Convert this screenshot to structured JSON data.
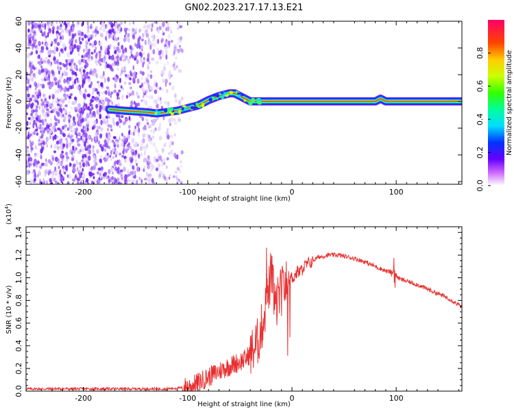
{
  "title": "GN02.2023.217.17.13.E21",
  "chart_data": [
    {
      "type": "heatmap",
      "xlabel": "Height of straight line (km)",
      "ylabel": "Frequency (Hz)",
      "xlim": [
        -255,
        163
      ],
      "ylim": [
        -62,
        60
      ],
      "xticks": [
        -200,
        -100,
        0,
        100
      ],
      "yticks": [
        -60,
        -40,
        -20,
        0,
        20,
        40,
        60
      ],
      "colorbar": {
        "label": "Normalized spectral amplitude",
        "range": [
          0,
          1
        ],
        "ticks": [
          0.0,
          0.2,
          0.4,
          0.6,
          0.8
        ]
      },
      "ridge": [
        [
          -175,
          -6
        ],
        [
          -160,
          -7
        ],
        [
          -140,
          -8
        ],
        [
          -130,
          -9
        ],
        [
          -120,
          -8
        ],
        [
          -110,
          -7
        ],
        [
          -100,
          -5
        ],
        [
          -90,
          -3
        ],
        [
          -80,
          1
        ],
        [
          -70,
          4
        ],
        [
          -60,
          6
        ],
        [
          -55,
          6
        ],
        [
          -50,
          4
        ],
        [
          -45,
          2
        ],
        [
          -40,
          0
        ],
        [
          -30,
          0
        ],
        [
          -20,
          0
        ],
        [
          -10,
          0
        ],
        [
          0,
          0
        ],
        [
          80,
          0
        ],
        [
          85,
          2
        ],
        [
          90,
          0
        ],
        [
          163,
          0
        ]
      ]
    },
    {
      "type": "line",
      "xlabel": "Height of straight line (km)",
      "ylabel": "SNR (10 * v/v)",
      "yscale_label": "(x10",
      "yscale_exp": "4",
      "xlim": [
        -255,
        163
      ],
      "ylim": [
        0,
        1.45
      ],
      "xticks": [
        -200,
        -100,
        0,
        100
      ],
      "yticks": [
        0.0,
        0.2,
        0.4,
        0.6,
        0.8,
        1.0,
        1.2,
        1.4
      ],
      "ytick_labels": [
        "0.0",
        "0.2",
        "0.4",
        "0.6",
        "0.8",
        "1.0",
        "1.2",
        "1.4"
      ],
      "series": [
        {
          "color": "#e83030",
          "x": [
            -255,
            -200,
            -150,
            -120,
            -105,
            -95,
            -85,
            -75,
            -65,
            -55,
            -45,
            -38,
            -32,
            -28,
            -25,
            -22,
            -20,
            -17,
            -15,
            -12,
            -10,
            -8,
            -5,
            -3,
            0,
            3,
            5,
            8,
            10,
            15,
            20,
            25,
            30,
            35,
            40,
            45,
            50,
            60,
            70,
            80,
            90,
            95,
            98,
            100,
            103,
            110,
            120,
            130,
            140,
            150,
            160,
            163
          ],
          "y": [
            0.02,
            0.02,
            0.02,
            0.02,
            0.03,
            0.05,
            0.1,
            0.15,
            0.2,
            0.24,
            0.28,
            0.35,
            0.45,
            0.6,
            0.75,
            0.9,
            1.05,
            0.82,
            0.75,
            0.85,
            0.88,
            0.92,
            0.95,
            1.0,
            1.0,
            1.02,
            1.05,
            1.05,
            1.08,
            1.12,
            1.15,
            1.18,
            1.19,
            1.2,
            1.2,
            1.2,
            1.19,
            1.17,
            1.14,
            1.1,
            1.06,
            1.05,
            1.06,
            1.02,
            0.99,
            0.97,
            0.94,
            0.9,
            0.86,
            0.82,
            0.76,
            0.74
          ]
        }
      ]
    }
  ],
  "colors": {
    "axes": "#000000",
    "line": "#e83030",
    "cloud": "#7a2bf0"
  }
}
